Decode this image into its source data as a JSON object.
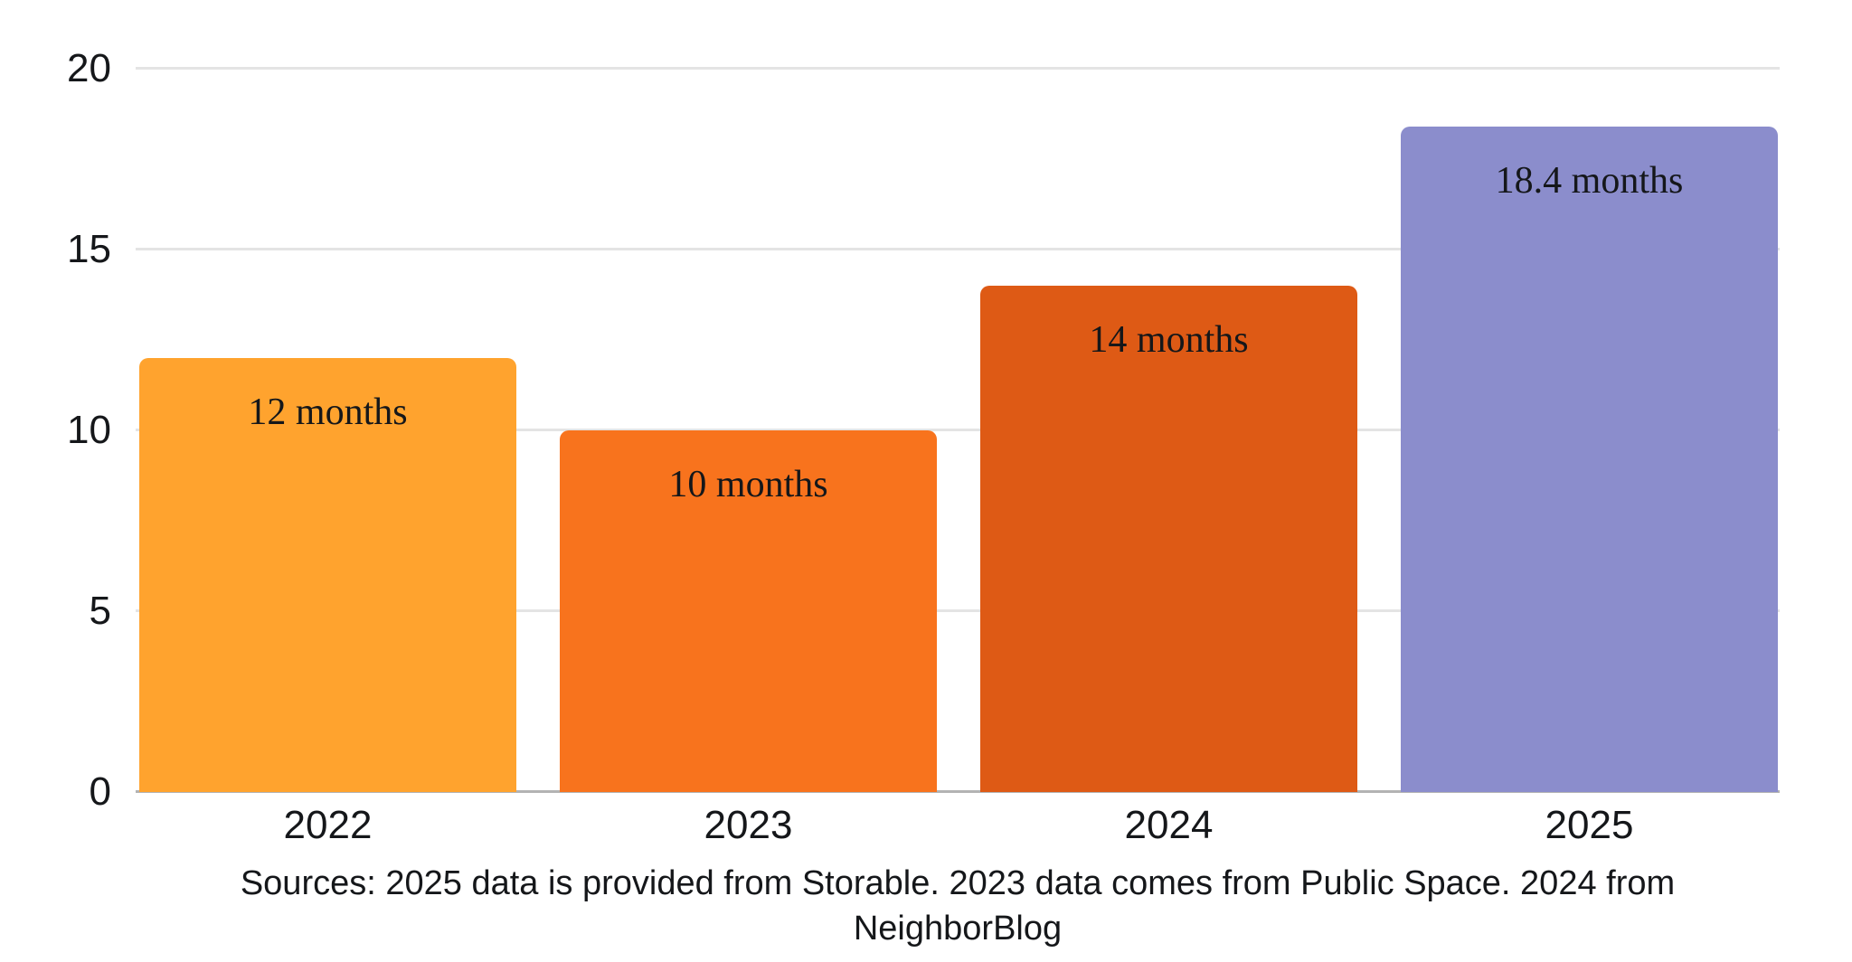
{
  "chart_data": {
    "type": "bar",
    "categories": [
      "2022",
      "2023",
      "2024",
      "2025"
    ],
    "values": [
      12,
      10,
      14,
      18.4
    ],
    "bar_labels": [
      "12 months",
      "10 months",
      "14 months",
      "18.4 months"
    ],
    "bar_colors": [
      "#FFA32E",
      "#F8731D",
      "#DE5A15",
      "#8B8DCC"
    ],
    "title": "",
    "xlabel": "",
    "ylabel": "",
    "ylim": [
      0,
      20
    ],
    "yticks": [
      0,
      5,
      10,
      15,
      20
    ],
    "grid": "horizontal-only",
    "legend": "none",
    "source_note": "Sources: 2025 data is provided from Storable. 2023 data comes from Public Space. 2024 from NeighborBlog"
  },
  "colors": {
    "background": "#FFFFFF",
    "grid_line": "#E4E4E4",
    "zero_axis_line": "#B3B3B3",
    "text": "#15171A"
  }
}
